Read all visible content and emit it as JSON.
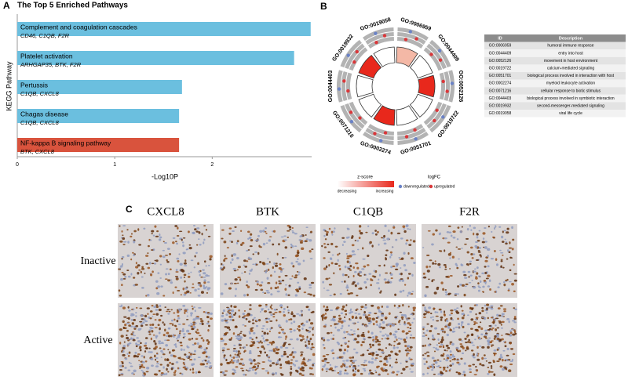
{
  "panel_labels": [
    "A",
    "B",
    "C"
  ],
  "chart_data": {
    "type": "bar",
    "orientation": "horizontal",
    "title": "The Top 5 Enriched Pathways",
    "ylabel": "KEGG Pathway",
    "xlabel": "-Log10P",
    "categories": [
      "Complement and coagulation cascades",
      "Platelet activation",
      "Pertussis",
      "Chagas disease",
      "NF-kappa B signaling pathway"
    ],
    "genes": [
      "CD46, C1QB, F2R",
      "ARHGAP35, BTK, F2R",
      "C1QB, CXCL8",
      "C1QB, CXCL8",
      "BTK, CXCL8"
    ],
    "values": [
      3.01,
      2.84,
      1.69,
      1.66,
      1.66
    ],
    "colors": [
      "#6bbfdf",
      "#6bbfdf",
      "#6bbfdf",
      "#6bbfdf",
      "#d9533d"
    ],
    "xlim": [
      0,
      3.02
    ],
    "xticks": [
      0,
      1,
      2
    ]
  },
  "go_legend": {
    "zscore_title": "z-score",
    "decreasing": "decreasing",
    "increasing": "increasing",
    "logfc_title": "logFC",
    "down": "downregulated",
    "up": "upregulated"
  },
  "table": {
    "header": [
      "ID",
      "Description"
    ],
    "rows": [
      [
        "GO:0006959",
        "humoral immune response"
      ],
      [
        "GO:0044409",
        "entry into host"
      ],
      [
        "GO:0052126",
        "movement in host environment"
      ],
      [
        "GO:0019722",
        "calcium-mediated signaling"
      ],
      [
        "GO:0051701",
        "biological process involved in interaction with host"
      ],
      [
        "GO:0002274",
        "myeloid leukocyte activation"
      ],
      [
        "GO:0071216",
        "cellular response to biotic stimulus"
      ],
      [
        "GO:0044403",
        "biological process involved in symbiotic interaction"
      ],
      [
        "GO:0019932",
        "second-messenger-mediated signaling"
      ],
      [
        "GO:0019058",
        "viral life cycle"
      ]
    ]
  },
  "ihc": {
    "columns": [
      "CXCL8",
      "BTK",
      "C1QB",
      "F2R"
    ],
    "rows": [
      "Inactive",
      "Active"
    ]
  }
}
